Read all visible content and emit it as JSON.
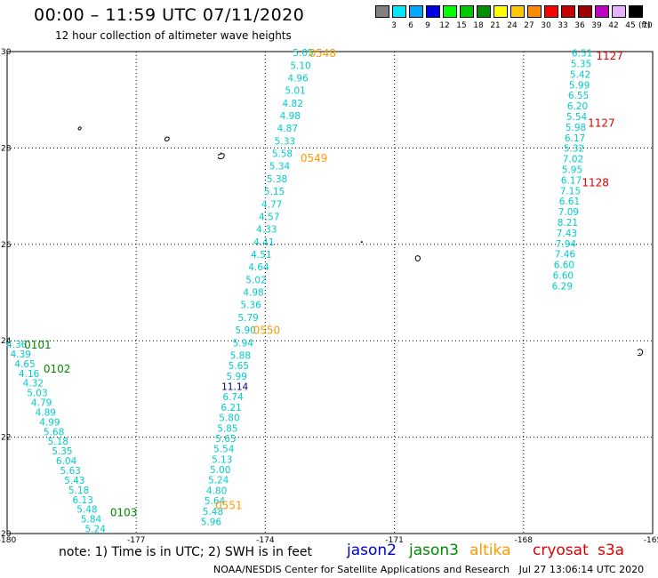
{
  "header": {
    "title": "00:00 – 11:59 UTC 07/11/2020",
    "subtitle": "12 hour collection of altimeter wave heights"
  },
  "legend": {
    "labels": [
      "3",
      "6",
      "9",
      "12",
      "15",
      "18",
      "21",
      "24",
      "27",
      "30",
      "33",
      "36",
      "39",
      "42",
      "45",
      "70"
    ],
    "unit": "(ft)",
    "colors": [
      "#808080",
      "#00e8ff",
      "#00a8ff",
      "#0000e8",
      "#00ff00",
      "#00c800",
      "#009000",
      "#ffff00",
      "#ffc800",
      "#ff8c00",
      "#ff0000",
      "#c80000",
      "#a00000",
      "#c000c0",
      "#e8b0ff",
      "#000000"
    ]
  },
  "axes": {
    "x_ticks": [
      "-180",
      "-177",
      "-174",
      "-171",
      "-168",
      "-165"
    ],
    "y_ticks": [
      "30",
      "28",
      "26",
      "24",
      "22",
      "20"
    ]
  },
  "map_features": {
    "grid_lines": "dotted",
    "land": "small Hawaiian islands (outlined)"
  },
  "colors": {
    "jason2": "#0000cc",
    "jason3": "#008800",
    "altika": "#ff9900",
    "cryosat": "#dd0000",
    "s3a": "#dd0000",
    "swh": "#00cccc",
    "swh_high": "#000080"
  },
  "tracks": [
    {
      "name": "altika-pass-1",
      "lon_start": -173.12,
      "lon_end": -174.58,
      "lat_start": 29.98,
      "lat_end": 23.7,
      "values": [
        "5.05",
        "5.10",
        "4.96",
        "5.01",
        "4.82",
        "4.98",
        "4.87",
        "5.33",
        "5.58",
        "5.34",
        "5.38",
        "5.15",
        "4.77",
        "4.57",
        "4.33",
        "4.41",
        "4.51",
        "4.64",
        "5.02",
        "4.98",
        "5.36",
        "5.79",
        "5.90",
        "5.94",
        "5.88",
        "5.65",
        "5.99",
        "11.14",
        "6.74",
        "6.21",
        "5.80",
        "5.85",
        "5.65",
        "5.54",
        "5.13",
        "5.00",
        "5.24",
        "4.80",
        "5.64",
        "5.48",
        "5.96"
      ],
      "lat_last": 20.25,
      "lon_last": -175.26
    },
    {
      "name": "jason3-pass-1",
      "lon_start": -179.78,
      "lon_end": -177.95,
      "lat_start": 23.93,
      "lat_end": 20.1,
      "values": [
        "4.36",
        "4.39",
        "4.65",
        "4.16",
        "4.32",
        "5.03",
        "4.79",
        "4.89",
        "4.99",
        "5.68",
        "5.18",
        "5.35",
        "6.04",
        "5.63",
        "5.43",
        "5.18",
        "6.13",
        "5.48",
        "5.84",
        "5.24"
      ]
    },
    {
      "name": "s3a-pass-1",
      "lon_start": -166.64,
      "lon_end": -167.1,
      "lat_start": 29.97,
      "lat_end": 25.14,
      "values": [
        "6.51",
        "5.35",
        "5.42",
        "5.99",
        "6.55",
        "6.20",
        "5.54",
        "5.98",
        "6.17",
        "5.32",
        "7.02",
        "5.95",
        "6.17",
        "7.15",
        "6.61",
        "7.09",
        "8.21",
        "7.43",
        "7.94",
        "7.46",
        "6.60",
        "6.60",
        "6.29"
      ]
    }
  ],
  "time_labels": [
    {
      "text": "0548",
      "sat": "altika",
      "lon": -172.67,
      "lat": 29.98
    },
    {
      "text": "0549",
      "sat": "altika",
      "lon": -172.87,
      "lat": 27.8
    },
    {
      "text": "0550",
      "sat": "altika",
      "lon": -173.97,
      "lat": 24.23
    },
    {
      "text": "0551",
      "sat": "altika",
      "lon": -174.85,
      "lat": 20.6
    },
    {
      "text": "0101",
      "sat": "jason3",
      "lon": -179.29,
      "lat": 23.93
    },
    {
      "text": "0102",
      "sat": "jason3",
      "lon": -178.84,
      "lat": 23.43
    },
    {
      "text": "0103",
      "sat": "jason3",
      "lon": -177.29,
      "lat": 20.45
    },
    {
      "text": "1127",
      "sat": "s3a",
      "lon": -166.0,
      "lat": 29.93
    },
    {
      "text": "1127",
      "sat": "s3a",
      "lon": -166.19,
      "lat": 28.53
    },
    {
      "text": "1128",
      "sat": "s3a",
      "lon": -166.33,
      "lat": 27.3
    }
  ],
  "footer": {
    "note": "note: 1) Time is in UTC; 2) SWH is in feet",
    "satellites": [
      {
        "label": "jason2",
        "key": "jason2"
      },
      {
        "label": "jason3",
        "key": "jason3"
      },
      {
        "label": "altika",
        "key": "altika"
      },
      {
        "label": "cryosat",
        "key": "cryosat"
      },
      {
        "label": "s3a",
        "key": "s3a"
      }
    ],
    "credit": "NOAA/NESDIS Center for Satellite Applications and Research   Jul 27 13:06:14 UTC 2020"
  }
}
